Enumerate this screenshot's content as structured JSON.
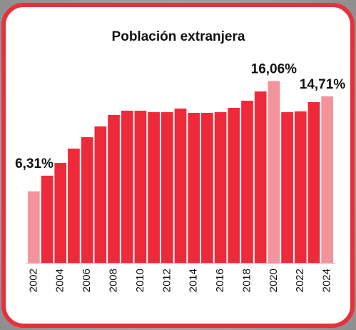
{
  "chart_data": {
    "type": "bar",
    "title": "Población extranjera",
    "categories": [
      "2002",
      null,
      "2004",
      null,
      "2006",
      null,
      "2008",
      null,
      "2010",
      null,
      "2012",
      null,
      "2014",
      null,
      "2016",
      null,
      "2018",
      null,
      "2020",
      null,
      "2022",
      null,
      "2024"
    ],
    "values": [
      6.31,
      7.7,
      8.83,
      10.09,
      11.1,
      12.05,
      13.06,
      13.44,
      13.44,
      13.31,
      13.31,
      13.63,
      13.25,
      13.25,
      13.31,
      13.69,
      14.32,
      15.14,
      16.06,
      13.31,
      13.38,
      14.2,
      14.71
    ],
    "value_labels": [
      "6,31%",
      null,
      null,
      null,
      null,
      null,
      null,
      null,
      null,
      null,
      null,
      null,
      null,
      null,
      null,
      null,
      null,
      null,
      "16,06%",
      null,
      null,
      null,
      "14,71%"
    ],
    "color": "#ee2a3a",
    "highlight_color": "#f4939b"
  }
}
